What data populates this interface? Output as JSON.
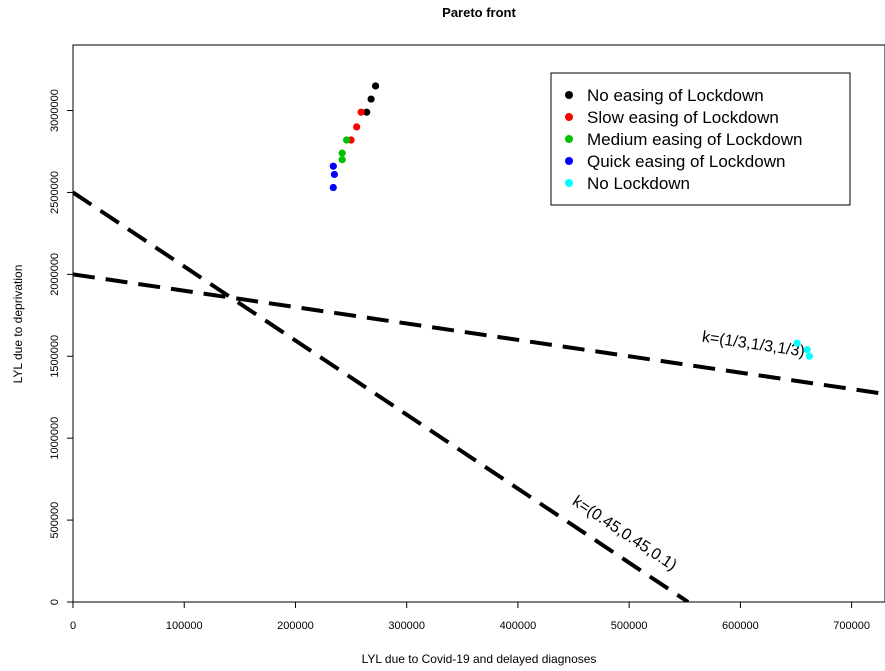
{
  "chart_data": {
    "type": "scatter",
    "title": "Pareto front",
    "xlabel": "LYL due to Covid-19 and delayed diagnoses",
    "ylabel": "LYL due to deprivation",
    "xlim": [
      0,
      730000
    ],
    "ylim": [
      0,
      3400000
    ],
    "x_ticks": [
      0,
      100000,
      200000,
      300000,
      400000,
      500000,
      600000,
      700000
    ],
    "x_tick_labels": [
      "0",
      "100000",
      "200000",
      "300000",
      "400000",
      "500000",
      "600000",
      "700000"
    ],
    "y_ticks": [
      0,
      500000,
      1000000,
      1500000,
      2000000,
      2500000,
      3000000
    ],
    "y_tick_labels": [
      "0",
      "500000",
      "1000000",
      "1500000",
      "2000000",
      "2500000",
      "3000000"
    ],
    "grid": false,
    "legend_position": "top-right",
    "series": [
      {
        "name": "No easing of Lockdown",
        "color": "#000000",
        "points": [
          [
            264000,
            2990000
          ],
          [
            268000,
            3070000
          ],
          [
            272000,
            3150000
          ]
        ]
      },
      {
        "name": "Slow easing of Lockdown",
        "color": "#ff0000",
        "points": [
          [
            250000,
            2820000
          ],
          [
            255000,
            2900000
          ],
          [
            259000,
            2990000
          ]
        ]
      },
      {
        "name": "Medium easing of Lockdown",
        "color": "#00c000",
        "points": [
          [
            242000,
            2700000
          ],
          [
            242000,
            2740000
          ],
          [
            246000,
            2820000
          ]
        ]
      },
      {
        "name": "Quick easing of Lockdown",
        "color": "#0000ff",
        "points": [
          [
            234000,
            2530000
          ],
          [
            235000,
            2610000
          ],
          [
            234000,
            2660000
          ]
        ]
      },
      {
        "name": "No Lockdown",
        "color": "#00ffff",
        "points": [
          [
            651000,
            1580000
          ],
          [
            660000,
            1540000
          ],
          [
            662000,
            1500000
          ]
        ]
      }
    ],
    "lines": [
      {
        "label": "k=(1/3,1/3,1/3)",
        "style": "dashed",
        "color": "#000000",
        "points": [
          [
            0,
            2000000
          ],
          [
            730000,
            1270000
          ]
        ],
        "label_at": [
          565000,
          1590000
        ]
      },
      {
        "label": "k=(0.45,0.45,0.1)",
        "style": "dashed",
        "color": "#000000",
        "points": [
          [
            0,
            2500000
          ],
          [
            553000,
            0
          ]
        ],
        "label_at": [
          448000,
          600000
        ]
      }
    ]
  }
}
